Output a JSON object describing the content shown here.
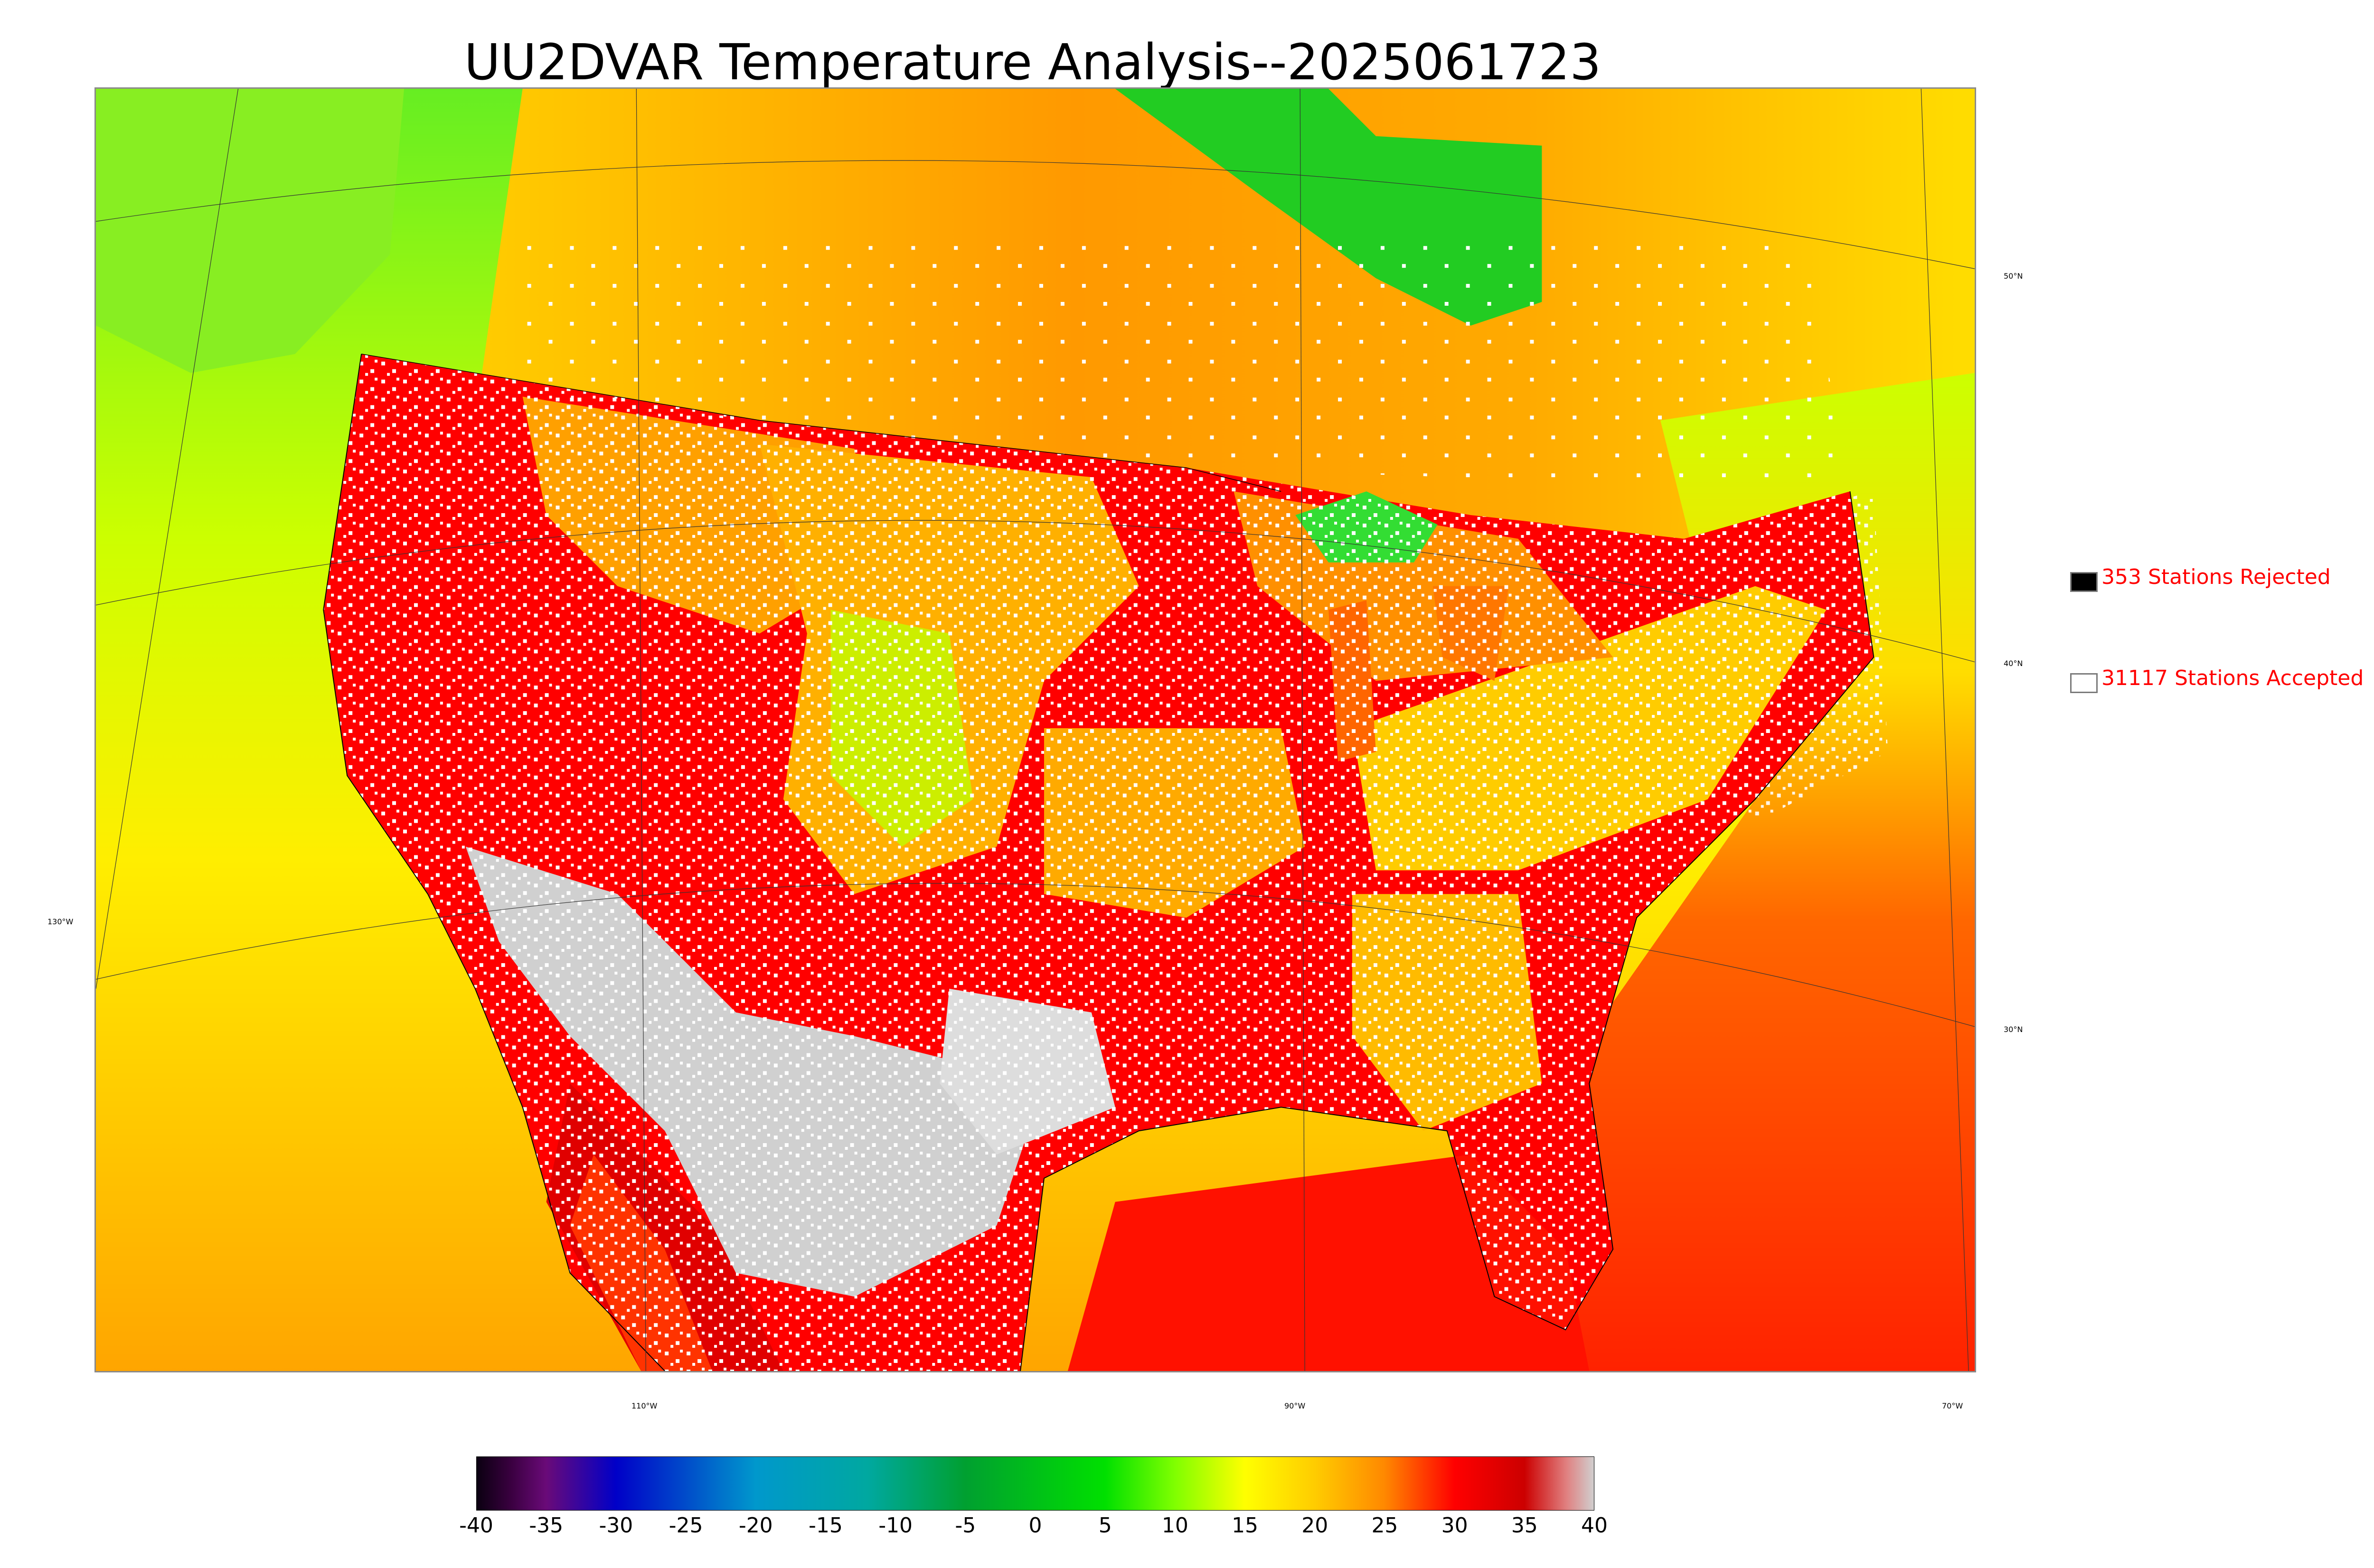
{
  "title": "UU2DVAR Temperature Analysis--2025061723",
  "map": {
    "lat_labels": [
      "50°N",
      "40°N",
      "30°N"
    ],
    "lon_labels": [
      "130°W",
      "110°W",
      "90°W",
      "70°W"
    ]
  },
  "legend": {
    "rejected": {
      "label": "353 Stations Rejected",
      "swatch_color": "#000000"
    },
    "accepted": {
      "label": "31117 Stations Accepted",
      "swatch_color": "#ffffff"
    },
    "text_color": "#ff0000"
  },
  "colorbar": {
    "ticks": [
      "-40",
      "-35",
      "-30",
      "-25",
      "-20",
      "-15",
      "-10",
      "-5",
      "0",
      "5",
      "10",
      "15",
      "20",
      "25",
      "30",
      "35",
      "40"
    ],
    "stops": [
      {
        "value": -40,
        "color": "#0a0010"
      },
      {
        "value": -37.5,
        "color": "#3a0040"
      },
      {
        "value": -35,
        "color": "#6a0a78"
      },
      {
        "value": -30,
        "color": "#0000c8"
      },
      {
        "value": -20,
        "color": "#0098cc"
      },
      {
        "value": -12,
        "color": "#00a8a0"
      },
      {
        "value": -5,
        "color": "#00a030"
      },
      {
        "value": 5,
        "color": "#00e000"
      },
      {
        "value": 10,
        "color": "#80ff00"
      },
      {
        "value": 15,
        "color": "#ffff00"
      },
      {
        "value": 20,
        "color": "#ffcc00"
      },
      {
        "value": 25,
        "color": "#ff8800"
      },
      {
        "value": 30,
        "color": "#ff0000"
      },
      {
        "value": 35,
        "color": "#cc0000"
      },
      {
        "value": 38,
        "color": "#e08080"
      },
      {
        "value": 40,
        "color": "#d0d0d0"
      }
    ]
  },
  "colors": {
    "hot": "#ff0000",
    "very_hot": "#dd0000",
    "extreme": "#cfcfcf",
    "warm": "#ffa500",
    "mild": "#ffff00",
    "cool": "#aaff00",
    "cold": "#00cc00",
    "station_accepted": "#ffffff",
    "station_rejected": "#000000"
  }
}
